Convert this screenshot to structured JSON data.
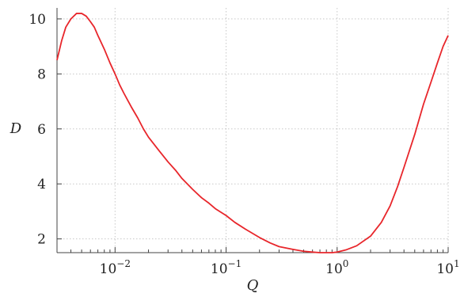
{
  "chart_data": {
    "type": "line",
    "title": "",
    "xlabel": "Q",
    "ylabel": "D",
    "x_scale": "log",
    "xlim": [
      0.003,
      10
    ],
    "ylim": [
      1.5,
      10.4
    ],
    "grid": true,
    "legend": "none",
    "x_ticks": [
      {
        "value": 0.01,
        "base": "10",
        "exp": "−2"
      },
      {
        "value": 0.1,
        "base": "10",
        "exp": "−1"
      },
      {
        "value": 1,
        "base": "10",
        "exp": "0"
      },
      {
        "value": 10,
        "base": "10",
        "exp": "1"
      }
    ],
    "y_ticks": [
      {
        "value": 2,
        "label": "2"
      },
      {
        "value": 4,
        "label": "4"
      },
      {
        "value": 6,
        "label": "6"
      },
      {
        "value": 8,
        "label": "8"
      },
      {
        "value": 10,
        "label": "10"
      }
    ],
    "series": [
      {
        "color": "#e8262b",
        "x": [
          0.003,
          0.0033,
          0.0036,
          0.004,
          0.0045,
          0.005,
          0.0055,
          0.006,
          0.0065,
          0.007,
          0.008,
          0.009,
          0.01,
          0.011,
          0.012,
          0.014,
          0.016,
          0.018,
          0.02,
          0.025,
          0.03,
          0.035,
          0.04,
          0.05,
          0.06,
          0.07,
          0.08,
          0.1,
          0.12,
          0.15,
          0.2,
          0.25,
          0.3,
          0.4,
          0.5,
          0.6,
          0.7,
          0.8,
          0.9,
          1.0,
          1.2,
          1.5,
          2.0,
          2.5,
          3.0,
          3.5,
          4.0,
          5.0,
          6.0,
          7.0,
          8.0,
          9.0,
          10.0
        ],
        "y": [
          8.5,
          9.2,
          9.7,
          10.0,
          10.2,
          10.2,
          10.1,
          9.9,
          9.7,
          9.4,
          8.9,
          8.4,
          8.0,
          7.6,
          7.3,
          6.8,
          6.4,
          6.0,
          5.7,
          5.2,
          4.8,
          4.5,
          4.2,
          3.8,
          3.5,
          3.3,
          3.1,
          2.85,
          2.6,
          2.35,
          2.05,
          1.85,
          1.72,
          1.62,
          1.55,
          1.52,
          1.5,
          1.5,
          1.5,
          1.52,
          1.6,
          1.75,
          2.1,
          2.6,
          3.2,
          3.9,
          4.6,
          5.8,
          6.9,
          7.7,
          8.4,
          9.0,
          9.4
        ]
      }
    ]
  }
}
